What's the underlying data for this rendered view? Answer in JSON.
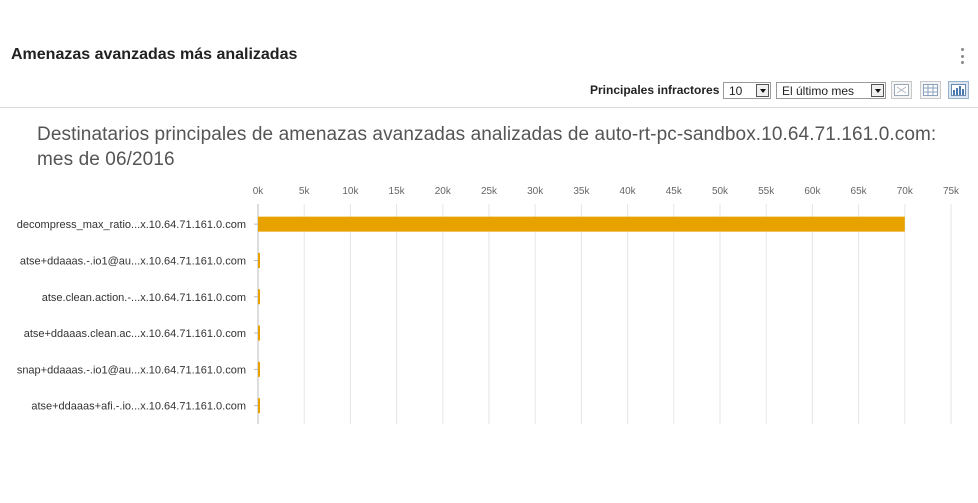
{
  "widget": {
    "title": "Amenazas avanzadas más analizadas"
  },
  "toolbar": {
    "label": "Principales infractores",
    "count_value": "10",
    "period_value": "El último mes",
    "view_icons": [
      "table-view-icon",
      "grid-view-icon",
      "bar-chart-view-icon"
    ]
  },
  "chart_data": {
    "type": "bar",
    "orientation": "horizontal",
    "title": "Destinatarios principales de amenazas avanzadas analizadas de auto-rt-pc-sandbox.10.64.71.161.0.com: mes de 06/2016",
    "categories": [
      "decompress_max_ratio...x.10.64.71.161.0.com",
      "atse+ddaaas.-.io1@au...x.10.64.71.161.0.com",
      "atse.clean.action.-...x.10.64.71.161.0.com",
      "atse+ddaaas.clean.ac...x.10.64.71.161.0.com",
      "snap+ddaaas.-.io1@au...x.10.64.71.161.0.com",
      "atse+ddaaas+afi.-.io...x.10.64.71.161.0.com"
    ],
    "values": [
      70000,
      200,
      200,
      200,
      200,
      200
    ],
    "xlim": [
      0,
      75000
    ],
    "xticks": [
      "0k",
      "5k",
      "10k",
      "15k",
      "20k",
      "25k",
      "30k",
      "35k",
      "40k",
      "45k",
      "50k",
      "55k",
      "60k",
      "65k",
      "70k",
      "75k"
    ],
    "grid": true,
    "bar_color": "#E8A200"
  }
}
